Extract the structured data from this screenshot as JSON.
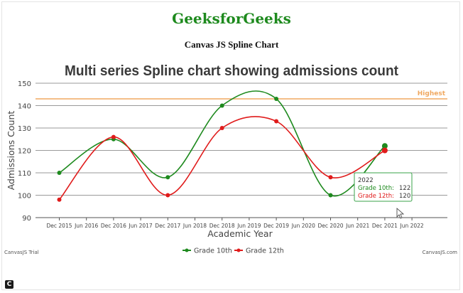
{
  "page": {
    "site_title": "GeeksforGeeks",
    "subtitle": "Canvas JS Spline Chart",
    "trial_label": "CanvasJS Trial",
    "credit_label": "CanvasJS.com",
    "corner_icon_glyph": "C",
    "corner_icon": "c-logo-icon",
    "title_color": "#1e8a1e"
  },
  "chart_data": {
    "type": "line",
    "smooth": true,
    "title": "Multi series Spline chart showing admissions count",
    "xlabel": "Academic Year",
    "ylabel": "Admissions Count",
    "ylim": [
      90,
      150
    ],
    "yticks": [
      90,
      100,
      110,
      120,
      130,
      140,
      150
    ],
    "x_ticks": [
      "Dec 2015",
      "Jun 2016",
      "Dec 2016",
      "Jun 2017",
      "Dec 2017",
      "Jun 2018",
      "Dec 2018",
      "Jun 2019",
      "Dec 2019",
      "Jun 2020",
      "Dec 2020",
      "Jun 2021",
      "Dec 2021",
      "Jun 2022"
    ],
    "grid": true,
    "legend_position": "bottom-center",
    "strip_line": {
      "value": 143,
      "label": "Highest",
      "color": "#f0a860"
    },
    "series": [
      {
        "name": "Grade 10th",
        "color": "#1e8a1e",
        "x": [
          "Dec 2015",
          "Dec 2016",
          "Dec 2017",
          "Dec 2018",
          "Dec 2019",
          "Dec 2020",
          "Dec 2021"
        ],
        "values": [
          110,
          125,
          108,
          140,
          143,
          100,
          122
        ]
      },
      {
        "name": "Grade 12th",
        "color": "#e01b1b",
        "x": [
          "Dec 2015",
          "Dec 2016",
          "Dec 2017",
          "Dec 2018",
          "Dec 2019",
          "Dec 2020",
          "Dec 2021"
        ],
        "values": [
          98,
          126,
          100,
          130,
          133,
          108,
          120
        ]
      }
    ],
    "tooltip": {
      "title": "2022",
      "rows": [
        {
          "label": "Grade 10th:",
          "value": "122",
          "color": "#1e8a1e"
        },
        {
          "label": "Grade 12th:",
          "value": "120",
          "color": "#e01b1b"
        }
      ]
    }
  }
}
